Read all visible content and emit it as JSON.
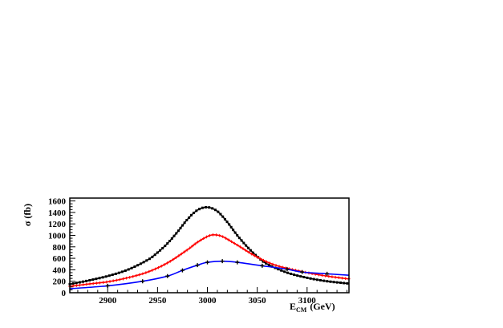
{
  "chart_data": {
    "type": "line",
    "title": "",
    "xlabel_main": "E",
    "xlabel_sub": "CM",
    "xlabel_unit": "(GeV)",
    "ylabel": "σ (fb)",
    "xlim": [
      2862,
      3142
    ],
    "ylim": [
      0,
      1650
    ],
    "x_ticks": [
      2900,
      2950,
      3000,
      3050,
      3100
    ],
    "y_ticks": [
      0,
      200,
      400,
      600,
      800,
      1000,
      1200,
      1400,
      1600
    ],
    "grid": false,
    "legend": "none",
    "series": [
      {
        "color": "#000000",
        "marker": "square",
        "x": [
          2862,
          2880,
          2900,
          2920,
          2940,
          2950,
          2960,
          2970,
          2980,
          2990,
          3000,
          3010,
          3020,
          3030,
          3040,
          3050,
          3060,
          3080,
          3100,
          3120,
          3142
        ],
        "y": [
          150,
          210,
          290,
          400,
          570,
          700,
          860,
          1060,
          1280,
          1440,
          1490,
          1420,
          1230,
          1000,
          800,
          630,
          500,
          350,
          260,
          200,
          160
        ]
      },
      {
        "color": "#ff0000",
        "marker": "plus",
        "x": [
          2862,
          2880,
          2900,
          2920,
          2940,
          2960,
          2980,
          2990,
          3000,
          3006,
          3015,
          3030,
          3050,
          3070,
          3100,
          3120,
          3142
        ],
        "y": [
          110,
          150,
          190,
          260,
          360,
          520,
          750,
          880,
          980,
          1010,
          980,
          830,
          620,
          470,
          350,
          290,
          240
        ]
      },
      {
        "color": "#0000ff",
        "marker": "cross",
        "x": [
          2862,
          2900,
          2935,
          2960,
          2975,
          2990,
          3000,
          3015,
          3030,
          3055,
          3080,
          3095,
          3120,
          3142
        ],
        "y": [
          70,
          120,
          200,
          290,
          390,
          480,
          530,
          550,
          530,
          470,
          410,
          360,
          330,
          305
        ]
      }
    ]
  }
}
